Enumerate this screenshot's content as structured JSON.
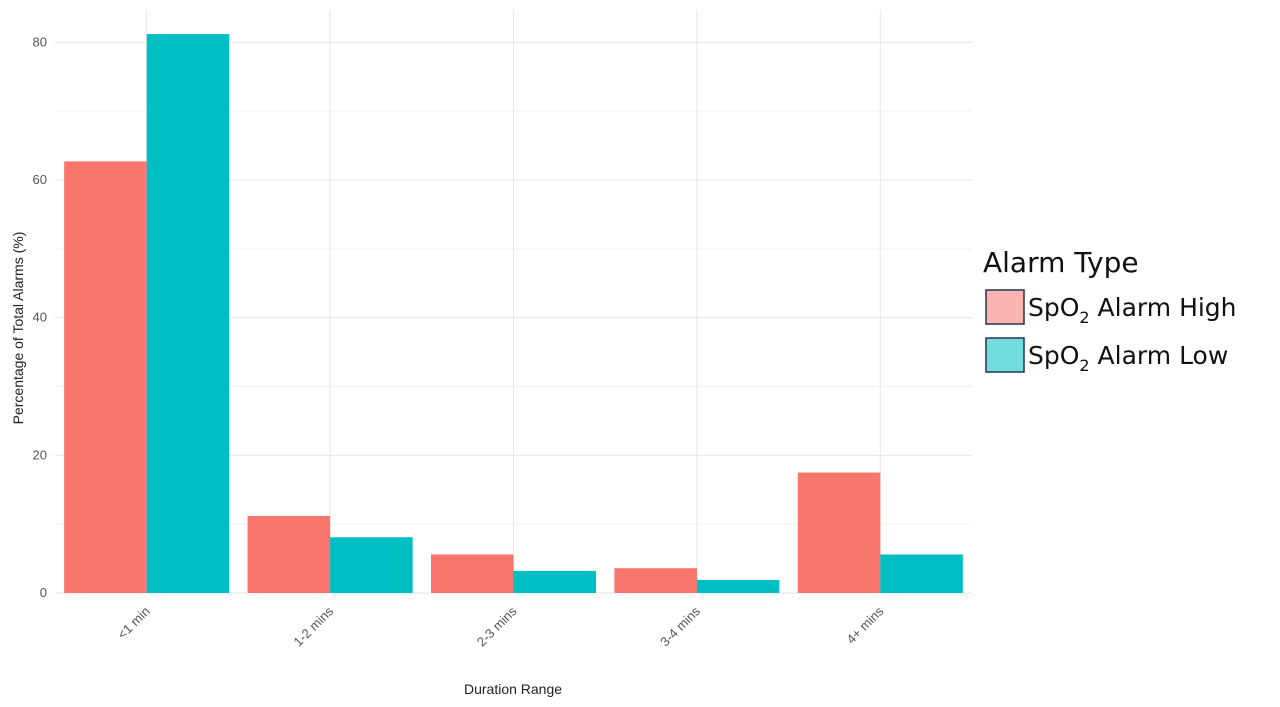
{
  "chart_data": {
    "type": "bar",
    "xlabel": "Duration Range",
    "ylabel": "Percentage of Total Alarms (%)",
    "categories": [
      "<1 min",
      "1-2 mins",
      "2-3 mins",
      "3-4 mins",
      "4+ mins"
    ],
    "series": [
      {
        "name": "SpO2 Alarm High",
        "name_base": "SpO",
        "name_sub": "2",
        "name_rest": " Alarm High",
        "color": "#F8766D",
        "values": [
          62.7,
          11.2,
          5.6,
          3.6,
          17.5
        ]
      },
      {
        "name": "SpO2 Alarm Low",
        "name_base": "SpO",
        "name_sub": "2",
        "name_rest": " Alarm Low",
        "color": "#00BFC4",
        "values": [
          81.2,
          8.1,
          3.2,
          1.9,
          5.6
        ]
      }
    ],
    "yticks": [
      0,
      20,
      40,
      60,
      80
    ],
    "ylim": [
      0,
      84.7
    ],
    "grid": true,
    "legend": {
      "title": "Alarm Type",
      "position": "right"
    }
  }
}
